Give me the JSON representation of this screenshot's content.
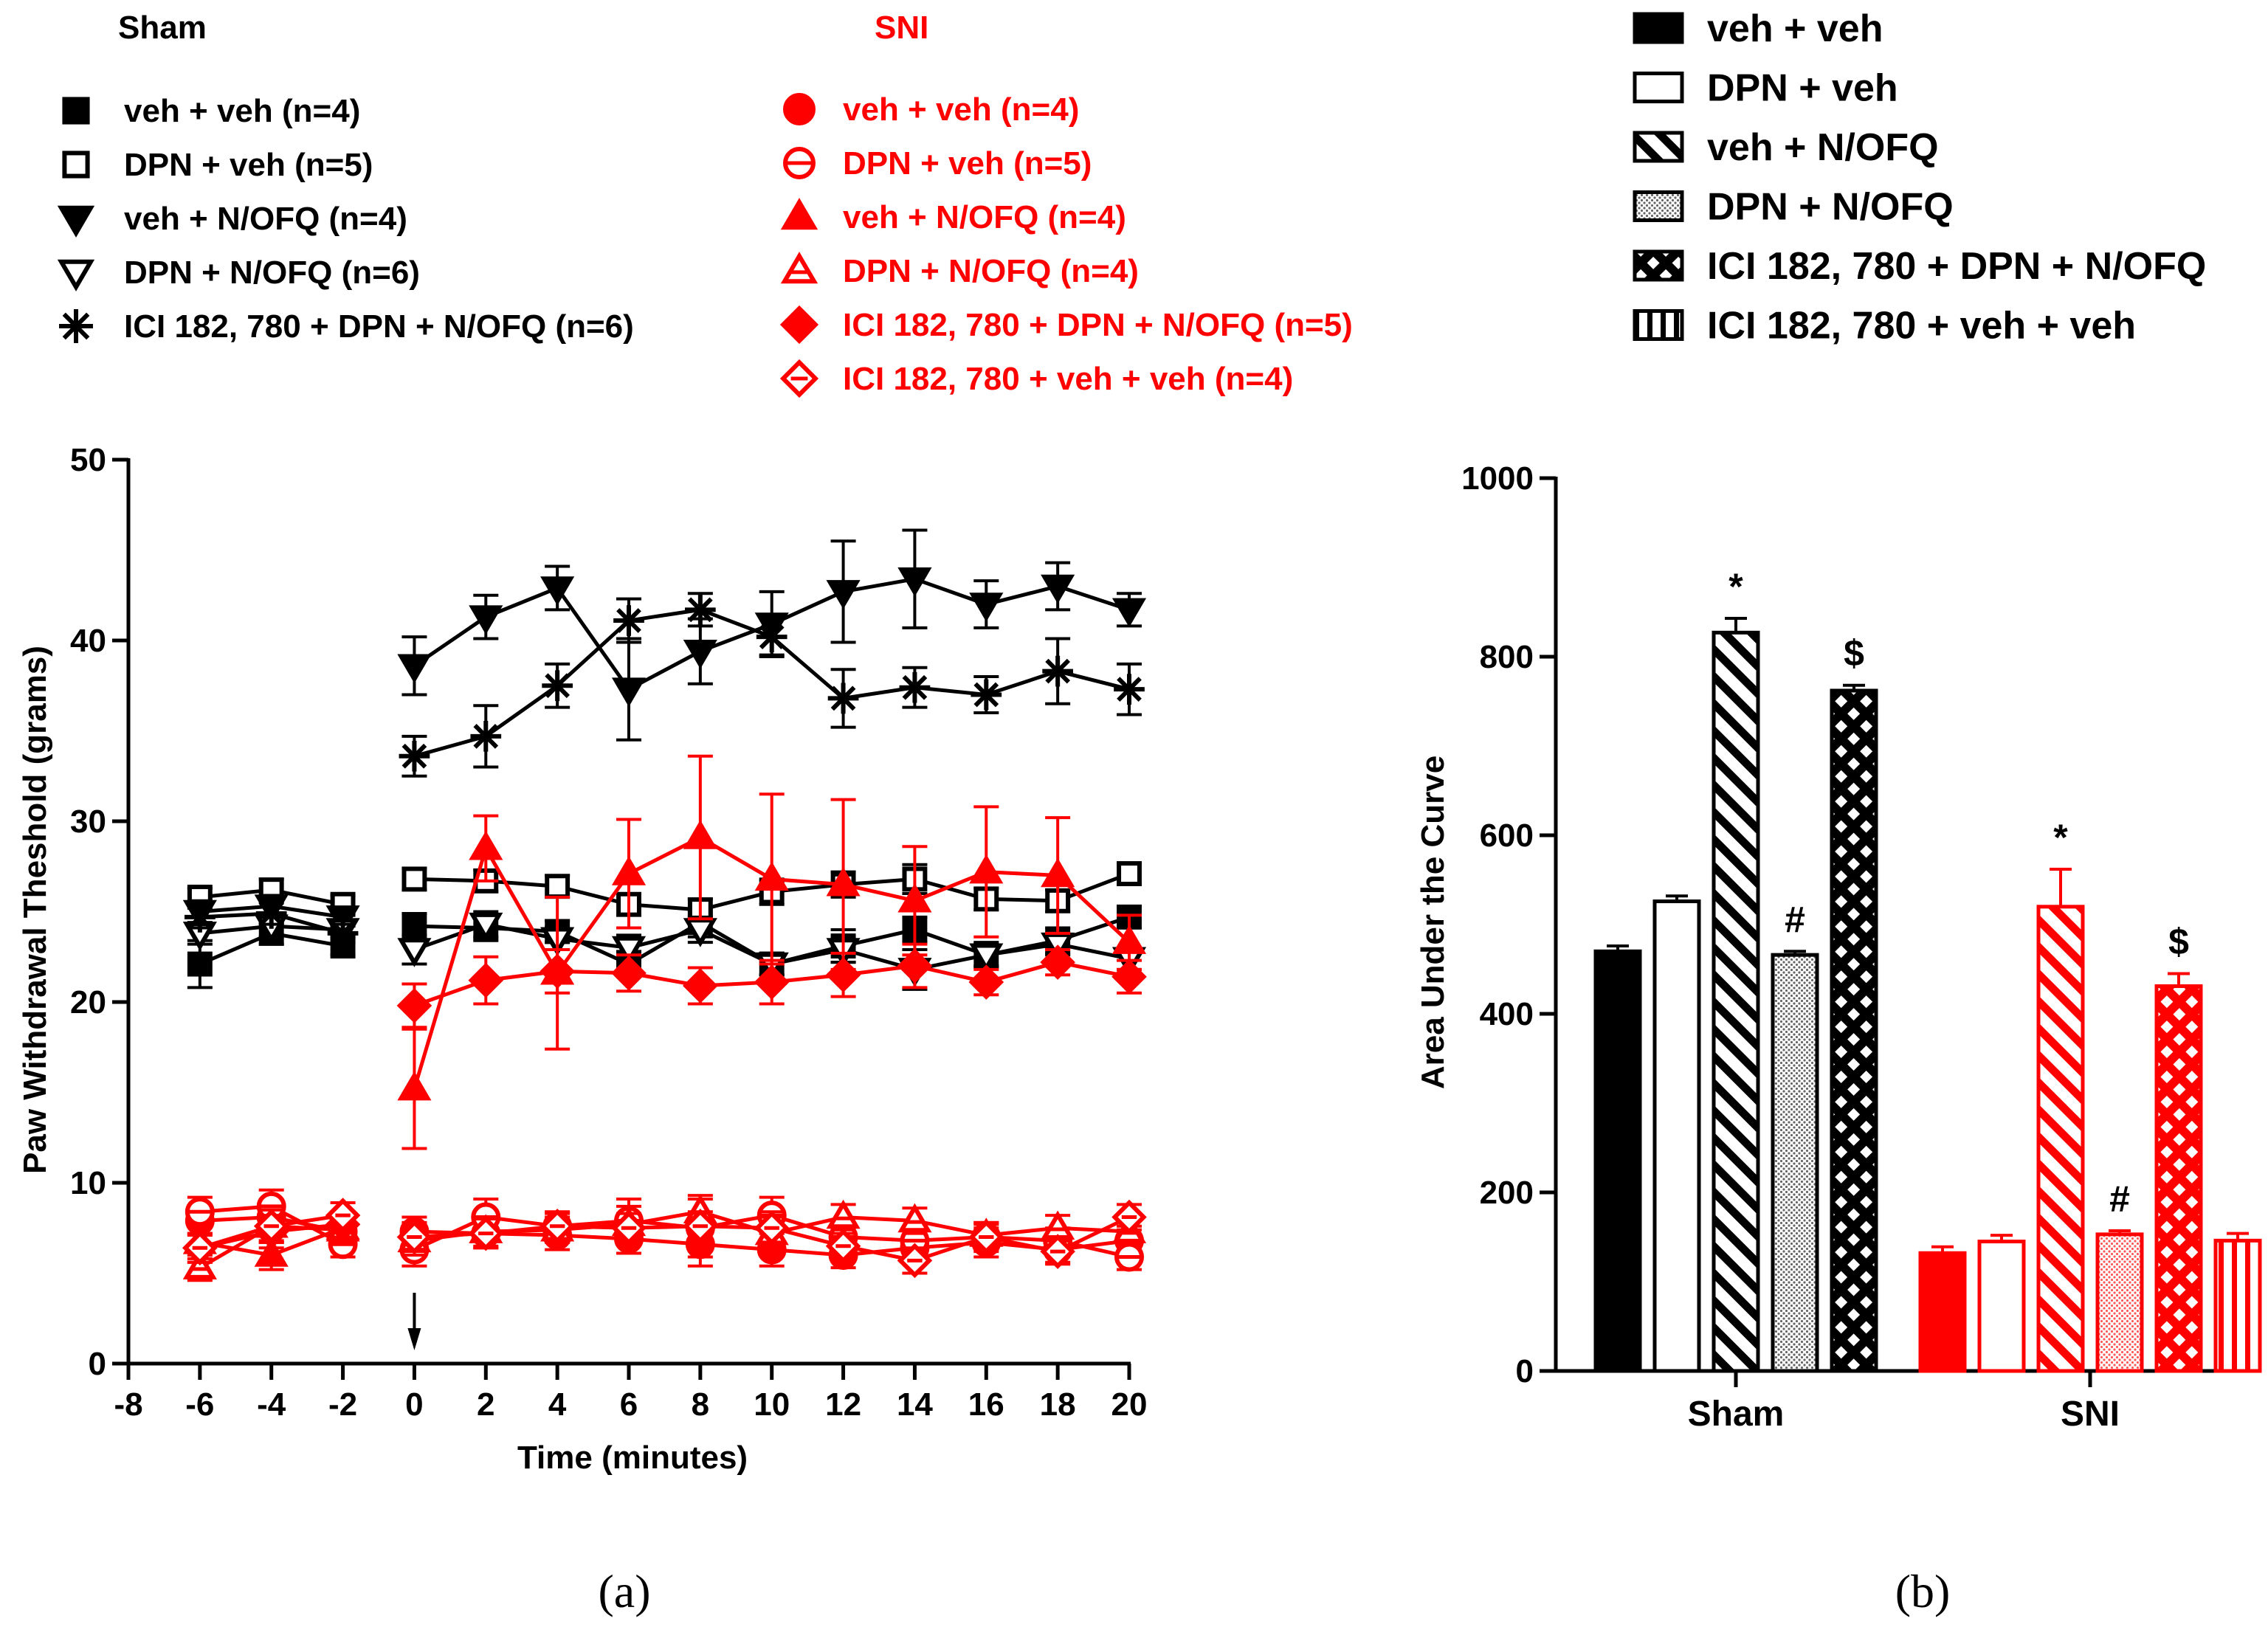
{
  "colors": {
    "sham": "#000000",
    "sni": "#ff0000",
    "background": "#ffffff"
  },
  "legend_a": {
    "sham_title": "Sham",
    "sni_title": "SNI",
    "sham_items": [
      {
        "label": "veh + veh (n=4)",
        "marker": "square-filled"
      },
      {
        "label": "DPN + veh (n=5)",
        "marker": "square-open"
      },
      {
        "label": "veh + N/OFQ (n=4)",
        "marker": "triangle-down-filled"
      },
      {
        "label": "DPN + N/OFQ (n=6)",
        "marker": "triangle-down-open"
      },
      {
        "label": "ICI 182, 780 + DPN + N/OFQ (n=6)",
        "marker": "asterisk"
      }
    ],
    "sni_items": [
      {
        "label": "veh + veh (n=4)",
        "marker": "circle-filled"
      },
      {
        "label": "DPN + veh (n=5)",
        "marker": "circle-open"
      },
      {
        "label": "veh + N/OFQ (n=4)",
        "marker": "triangle-up-filled"
      },
      {
        "label": "DPN + N/OFQ (n=4)",
        "marker": "triangle-up-open"
      },
      {
        "label": "ICI 182, 780 + DPN + N/OFQ (n=5)",
        "marker": "diamond-filled"
      },
      {
        "label": "ICI 182, 780 + veh + veh (n=4)",
        "marker": "diamond-open"
      }
    ]
  },
  "legend_b": [
    {
      "label": "veh + veh",
      "pattern": "solid"
    },
    {
      "label": "DPN + veh",
      "pattern": "open"
    },
    {
      "label": "veh + N/OFQ",
      "pattern": "diagonal"
    },
    {
      "label": "DPN + N/OFQ",
      "pattern": "dots"
    },
    {
      "label": "ICI 182, 780 + DPN + N/OFQ",
      "pattern": "crosshatch"
    },
    {
      "label": "ICI 182, 780 + veh + veh",
      "pattern": "vertical"
    }
  ],
  "panel_labels": {
    "a": "(a)",
    "b": "(b)"
  },
  "chart_data": [
    {
      "type": "line",
      "id": "a",
      "xlabel": "Time (minutes)",
      "ylabel": "Paw Withdrawal Theshold (grams)",
      "xlim": [
        -8,
        20
      ],
      "ylim": [
        0,
        50
      ],
      "xticks": [
        "-8",
        "-6",
        "-4",
        "-2",
        "0",
        "2",
        "4",
        "6",
        "8",
        "10",
        "12",
        "14",
        "16",
        "18",
        "20"
      ],
      "yticks": [
        "0",
        "10",
        "20",
        "30",
        "40",
        "50"
      ],
      "x": [
        -6,
        -4,
        -2,
        0,
        2,
        4,
        6,
        8,
        10,
        12,
        14,
        16,
        18,
        20
      ],
      "annotation": {
        "type": "arrow",
        "x": 0
      },
      "series": [
        {
          "name": "Sham veh + veh (n=4)",
          "group": "sham",
          "marker": "square-filled",
          "values": [
            22.1,
            23.8,
            23.1,
            24.2,
            24.1,
            23.9,
            22.1,
            24.4,
            22.1,
            23.1,
            24.0,
            22.6,
            23.4,
            24.7
          ],
          "errors": [
            1.3,
            0.6,
            0.5,
            0.7,
            0.7,
            0.6,
            0.7,
            0.8,
            0.6,
            0.9,
            0.7,
            0.6,
            0.7,
            0.6
          ]
        },
        {
          "name": "Sham DPN + veh (n=5)",
          "group": "sham",
          "marker": "square-open",
          "values": [
            25.8,
            26.2,
            25.4,
            26.8,
            26.7,
            26.4,
            25.4,
            25.1,
            26.1,
            26.5,
            26.8,
            25.7,
            25.6,
            27.1
          ],
          "errors": [
            0.5,
            0.6,
            0.5,
            0.6,
            0.6,
            0.6,
            0.6,
            0.6,
            0.7,
            0.7,
            0.8,
            0.6,
            0.6,
            0.6
          ]
        },
        {
          "name": "Sham veh + N/OFQ (n=4)",
          "group": "sham",
          "marker": "triangle-down-filled",
          "values": [
            25.0,
            25.3,
            24.7,
            38.6,
            41.3,
            42.9,
            37.3,
            39.4,
            40.9,
            42.7,
            43.4,
            42.0,
            43.0,
            41.7
          ],
          "errors": [
            0.6,
            0.6,
            0.5,
            1.6,
            1.2,
            1.2,
            2.8,
            1.8,
            1.8,
            2.8,
            2.7,
            1.3,
            1.3,
            0.9
          ]
        },
        {
          "name": "Sham DPN + N/OFQ (n=6)",
          "group": "sham",
          "marker": "triangle-down-open",
          "values": [
            23.8,
            24.2,
            24.0,
            22.9,
            24.3,
            23.5,
            23.0,
            24.0,
            22.1,
            22.9,
            21.8,
            22.6,
            23.2,
            22.4
          ],
          "errors": [
            0.6,
            0.6,
            0.5,
            0.8,
            0.7,
            0.6,
            0.7,
            0.7,
            0.6,
            0.7,
            1.1,
            0.7,
            0.6,
            0.6
          ]
        },
        {
          "name": "Sham ICI 182, 780 + DPN + N/OFQ (n=6)",
          "group": "sham",
          "marker": "asterisk",
          "values": [
            24.7,
            24.9,
            23.8,
            33.6,
            34.7,
            37.5,
            41.1,
            41.7,
            40.2,
            36.8,
            37.4,
            37.0,
            38.3,
            37.3
          ],
          "errors": [
            0.6,
            0.6,
            0.5,
            1.1,
            1.7,
            1.2,
            1.2,
            0.9,
            1.0,
            1.6,
            1.1,
            1.0,
            1.8,
            1.4
          ]
        },
        {
          "name": "SNI veh + veh (n=4)",
          "group": "sni",
          "marker": "circle-filled",
          "values": [
            7.9,
            8.1,
            7.3,
            7.3,
            7.2,
            7.1,
            6.9,
            6.6,
            6.3,
            6.0,
            6.4,
            6.7,
            6.3,
            6.8
          ],
          "errors": [
            0.8,
            0.9,
            0.7,
            0.8,
            0.8,
            0.8,
            0.8,
            1.2,
            0.9,
            0.7,
            0.7,
            0.8,
            0.7,
            0.8
          ]
        },
        {
          "name": "SNI DPN + veh (n=5)",
          "group": "sni",
          "marker": "circle-open",
          "values": [
            8.4,
            8.7,
            6.6,
            6.3,
            8.1,
            7.6,
            7.9,
            7.5,
            8.2,
            7.0,
            6.8,
            7.0,
            6.8,
            5.9
          ],
          "errors": [
            0.8,
            0.9,
            0.7,
            0.9,
            1.0,
            0.8,
            1.2,
            1.6,
            1.0,
            0.8,
            0.8,
            0.8,
            0.7,
            0.7
          ]
        },
        {
          "name": "SNI veh + N/OFQ (n=4)",
          "group": "sni",
          "marker": "triangle-up-filled",
          "values": [
            6.7,
            6.0,
            7.5,
            15.2,
            28.5,
            21.6,
            27.1,
            29.1,
            26.8,
            26.5,
            25.6,
            27.2,
            27.0,
            23.3
          ],
          "errors": [
            0.9,
            0.8,
            0.7,
            3.3,
            1.8,
            4.2,
            3.0,
            4.5,
            4.7,
            4.7,
            3.0,
            3.6,
            3.2,
            1.5
          ]
        },
        {
          "name": "SNI DPN + N/OFQ (n=4)",
          "group": "sni",
          "marker": "triangle-up-open",
          "values": [
            5.3,
            7.6,
            7.4,
            6.8,
            7.3,
            7.4,
            7.7,
            8.4,
            7.2,
            8.1,
            7.9,
            7.1,
            7.5,
            7.3
          ],
          "errors": [
            0.7,
            0.9,
            0.7,
            0.8,
            0.8,
            0.7,
            1.0,
            0.9,
            0.9,
            0.7,
            0.7,
            0.7,
            0.7,
            0.7
          ]
        },
        {
          "name": "SNI ICI 182, 780 + DPN + N/OFQ (n=5)",
          "group": "sni",
          "marker": "diamond-filled",
          "values": [
            6.4,
            7.3,
            7.7,
            19.8,
            21.2,
            21.7,
            21.6,
            20.9,
            21.1,
            21.5,
            22.0,
            21.1,
            22.2,
            21.4
          ],
          "errors": [
            0.8,
            0.9,
            0.7,
            1.2,
            1.3,
            1.2,
            1.0,
            1.0,
            1.2,
            1.2,
            1.2,
            0.7,
            0.7,
            0.9
          ]
        },
        {
          "name": "SNI ICI 182, 780 + veh + veh (n=4)",
          "group": "sni",
          "marker": "diamond-open",
          "values": [
            6.4,
            7.6,
            8.2,
            7.0,
            7.2,
            7.6,
            7.5,
            7.6,
            7.5,
            6.5,
            5.7,
            7.0,
            6.2,
            8.1
          ],
          "errors": [
            0.8,
            0.9,
            0.7,
            0.8,
            0.8,
            0.7,
            0.8,
            0.8,
            0.9,
            0.7,
            0.7,
            0.7,
            0.7,
            0.7
          ]
        }
      ]
    },
    {
      "type": "bar",
      "id": "b",
      "ylabel": "Area Under the Curve",
      "ylim": [
        0,
        1000
      ],
      "yticks": [
        "0",
        "200",
        "400",
        "600",
        "800",
        "1000"
      ],
      "categories": [
        "Sham",
        "SNI"
      ],
      "series": [
        {
          "name": "veh + veh",
          "pattern": "solid",
          "values": [
            470,
            132
          ],
          "errors": [
            6,
            7
          ],
          "annotations": [
            "",
            ""
          ]
        },
        {
          "name": "DPN + veh",
          "pattern": "open",
          "values": [
            526,
            145
          ],
          "errors": [
            6,
            7
          ],
          "annotations": [
            "",
            ""
          ]
        },
        {
          "name": "veh + N/OFQ",
          "pattern": "diagonal",
          "values": [
            827,
            520
          ],
          "errors": [
            16,
            42
          ],
          "annotations": [
            "*",
            "*"
          ]
        },
        {
          "name": "DPN + N/OFQ",
          "pattern": "dots",
          "values": [
            466,
            153
          ],
          "errors": [
            4,
            4
          ],
          "annotations": [
            "#",
            "#"
          ]
        },
        {
          "name": "ICI 182, 780 + DPN + N/OFQ",
          "pattern": "crosshatch",
          "values": [
            762,
            431
          ],
          "errors": [
            6,
            14
          ],
          "annotations": [
            "$",
            "$"
          ]
        },
        {
          "name": "ICI 182, 780 + veh + veh",
          "pattern": "vertical",
          "values": [
            null,
            146
          ],
          "errors": [
            null,
            8
          ],
          "annotations": [
            "",
            ""
          ]
        }
      ]
    }
  ]
}
